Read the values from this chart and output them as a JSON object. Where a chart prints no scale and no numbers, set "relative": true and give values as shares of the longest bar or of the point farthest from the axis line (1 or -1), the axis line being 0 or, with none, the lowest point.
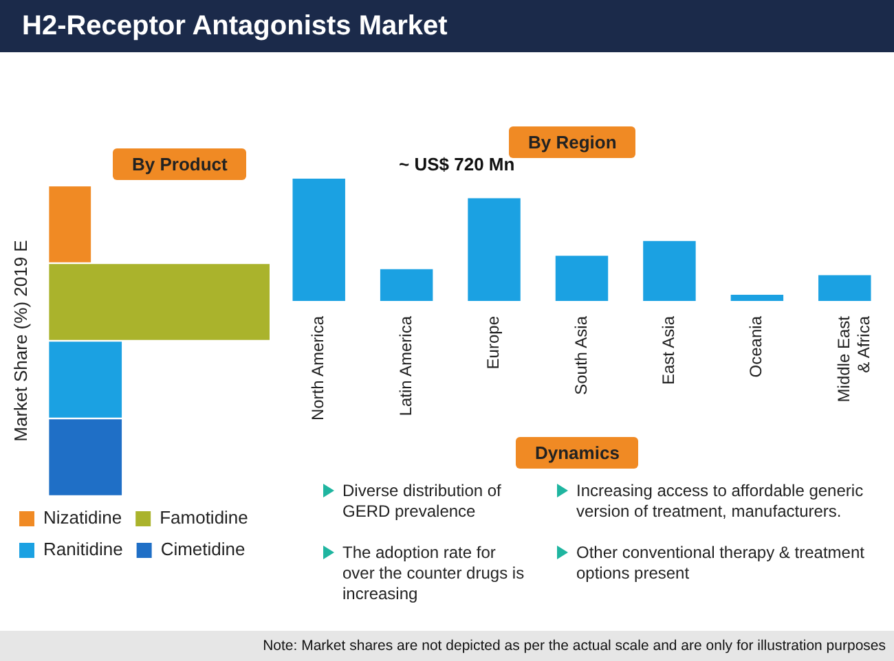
{
  "chart_data": [
    {
      "type": "other",
      "title": "H2-Receptor Antagonists Market"
    },
    {
      "type": "bar",
      "title": "By Product",
      "ylabel": "Market Share (%) 2019 E",
      "orientation": "horizontal",
      "relative": true,
      "stacked": true,
      "legend": "bottom",
      "categories": [
        null,
        null,
        null,
        null
      ],
      "series": [
        {
          "name": "Nizatidine",
          "color": "#f08a24",
          "values": [
            0.19,
            null,
            null,
            null
          ]
        },
        {
          "name": "Famotidine",
          "color": "#aab32c",
          "values": [
            null,
            1,
            null,
            null
          ]
        },
        {
          "name": "Ranitidine",
          "color": "#1ba1e2",
          "values": [
            null,
            null,
            0.33,
            null
          ]
        },
        {
          "name": "Cimetidine",
          "color": "#1f6fc6",
          "values": [
            null,
            null,
            null,
            0.33
          ]
        }
      ]
    },
    {
      "type": "bar",
      "title": "By Region",
      "relative": true,
      "annotations": [
        "~ US$ 720 Mn"
      ],
      "categories": [
        "North America",
        "Latin America",
        "Europe",
        "South Asia",
        "East Asia",
        "Oceania",
        "Middle East & Africa"
      ],
      "color": "#1ba1e2",
      "values": [
        1,
        0.26,
        0.84,
        0.37,
        0.49,
        0.05,
        0.21
      ]
    },
    {
      "type": "other",
      "title": "Dynamics",
      "annotations": [
        "Diverse distribution of GERD prevalence",
        "The adoption rate for over the counter drugs is increasing",
        "Increasing access to affordable generic version of treatment, manufacturers.",
        "Other conventional therapy & treatment options present",
        "Note: Market shares are not depicted as per the actual scale and are only for illustration purposes"
      ]
    }
  ]
}
